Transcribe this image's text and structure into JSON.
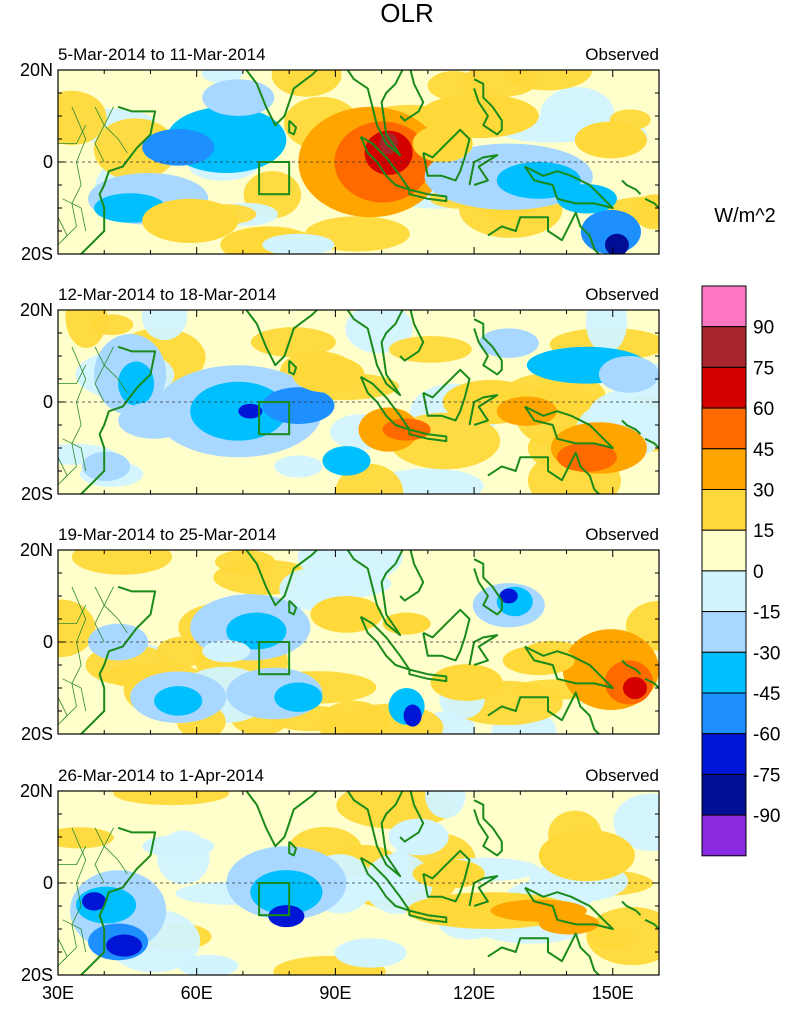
{
  "title": "OLR",
  "unit_label": "W/m^2",
  "x_ticks": [
    "30E",
    "60E",
    "90E",
    "120E",
    "150E"
  ],
  "y_ticks": [
    "20N",
    "0",
    "20S"
  ],
  "panels": [
    {
      "period": "5-Mar-2014 to 11-Mar-2014",
      "label": "Observed"
    },
    {
      "period": "12-Mar-2014 to 18-Mar-2014",
      "label": "Observed"
    },
    {
      "period": "19-Mar-2014 to 25-Mar-2014",
      "label": "Observed"
    },
    {
      "period": "26-Mar-2014 to 1-Apr-2014",
      "label": "Observed"
    }
  ],
  "colorbar": {
    "levels": [
      "90",
      "75",
      "60",
      "45",
      "30",
      "15",
      "0",
      "-15",
      "-30",
      "-45",
      "-60",
      "-75",
      "-90"
    ],
    "colors": [
      "#ff77c3",
      "#a8262b",
      "#d40000",
      "#ff6a00",
      "#ffa500",
      "#ffd93a",
      "#ffffcc",
      "#d2f4ff",
      "#a8d8ff",
      "#00bfff",
      "#1e8fff",
      "#0016d6",
      "#000e96",
      "#8a2be2"
    ]
  },
  "map_colors": {
    "coast": "#1a8a1a",
    "box": "#1a8a1a",
    "border": "#2e8b2e"
  }
}
